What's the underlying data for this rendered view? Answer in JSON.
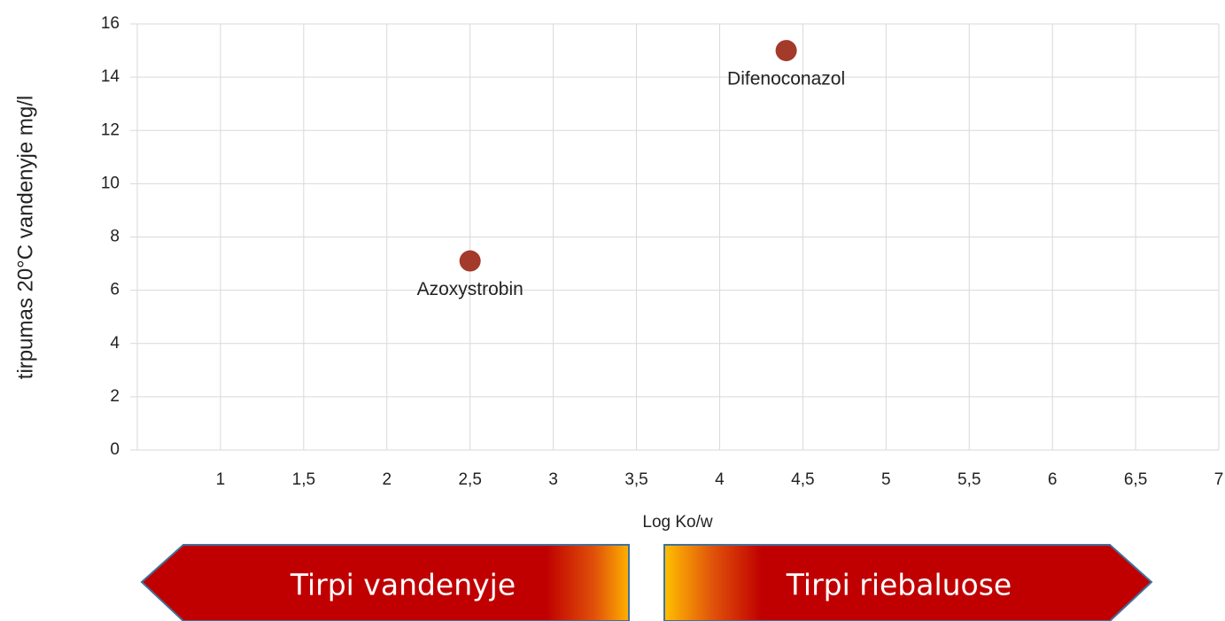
{
  "chart_data": {
    "type": "scatter",
    "x_label": "Log Ko/w",
    "y_label": "tirpumas 20°C vandenyje mg/l",
    "series": [
      {
        "color": "#a33a2a",
        "x": [
          2.5,
          4.4
        ],
        "values": [
          7.1,
          15
        ],
        "labels": [
          "Azoxystrobin",
          "Difenoconazol"
        ]
      }
    ],
    "xlim": [
      0.5,
      7
    ],
    "xticks": [
      1,
      {
        "value": 1.5,
        "label": "1,5"
      },
      2,
      {
        "value": 2.5,
        "label": "2,5"
      },
      3,
      {
        "value": 3.5,
        "label": "3,5"
      },
      4,
      {
        "value": 4.5,
        "label": "4,5"
      },
      5,
      {
        "value": 5.5,
        "label": "5,5"
      },
      6,
      {
        "value": 6.5,
        "label": "6,5"
      },
      7
    ],
    "ylim": [
      0,
      16
    ],
    "yticks": [
      0,
      2,
      4,
      6,
      8,
      10,
      12,
      14,
      16
    ],
    "grid": true,
    "arrows": [
      "Tirpi vandenyje",
      "Tirpi riebaluose"
    ]
  }
}
